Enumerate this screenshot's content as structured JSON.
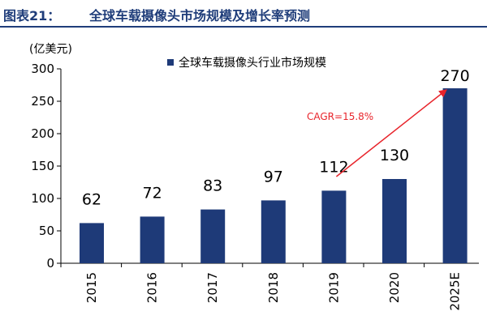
{
  "header": {
    "figure_label": "图表21：",
    "title": "全球车载摄像头市场规模及增长率预测"
  },
  "colors": {
    "bar": "#1e3a78",
    "accent": "#e8242b",
    "title": "#1f3d7a"
  },
  "chart_data": {
    "type": "bar",
    "title": "全球车载摄像头市场规模及增长率预测",
    "ylabel": "(亿美元)",
    "xlabel": "",
    "categories": [
      "2015",
      "2016",
      "2017",
      "2018",
      "2019",
      "2020",
      "2025E"
    ],
    "series": [
      {
        "name": "全球车载摄像头行业市场规模",
        "values": [
          62,
          72,
          83,
          97,
          112,
          130,
          270
        ]
      }
    ],
    "data_labels": [
      "62",
      "72",
      "83",
      "97",
      "112",
      "130",
      "270"
    ],
    "ylim": [
      0,
      300
    ],
    "yticks": [
      0,
      50,
      100,
      150,
      200,
      250,
      300
    ],
    "ytick_labels": [
      "0",
      "50",
      "100",
      "150",
      "200",
      "250",
      "300"
    ],
    "grid": false,
    "legend_position": "top",
    "annotation": "CAGR=15.8%"
  }
}
